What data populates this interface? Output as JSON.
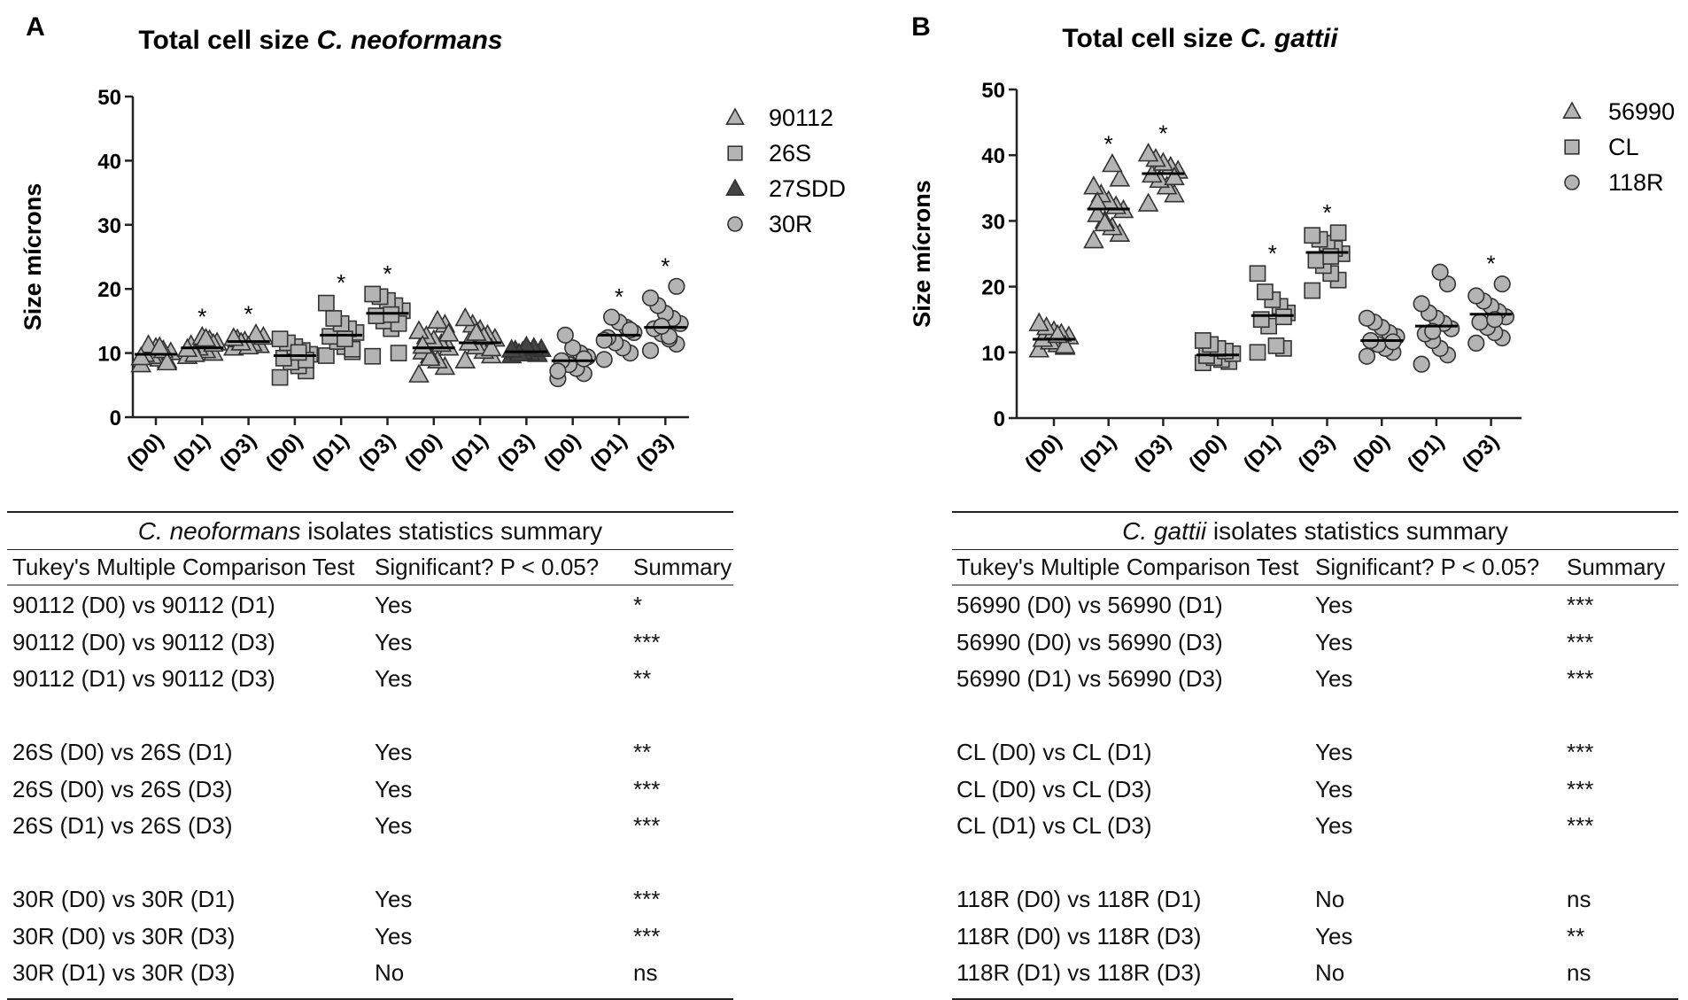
{
  "chart_data": [
    {
      "type": "scatter",
      "panel_label": "A",
      "title_prefix": "Total cell size",
      "title_species": "C. neoformans",
      "ylabel": "Size mícrons",
      "ylim": [
        0,
        50
      ],
      "yticks": [
        "0",
        "10",
        "20",
        "30",
        "40",
        "50"
      ],
      "categories": [
        "(D0)",
        "(D1)",
        "(D3)",
        "(D0)",
        "(D1)",
        "(D3)",
        "(D0)",
        "(D1)",
        "(D3)",
        "(D0)",
        "(D1)",
        "(D3)"
      ],
      "legend": [
        {
          "label": "90112",
          "marker": "triangle-open"
        },
        {
          "label": "26S",
          "marker": "square"
        },
        {
          "label": "27SDD",
          "marker": "triangle-dark"
        },
        {
          "label": "30R",
          "marker": "circle"
        }
      ],
      "series": [
        {
          "name": "90112",
          "marker": "triangle-open",
          "groups": [
            {
              "category_index": 0,
              "mean": 9.8,
              "significant": false,
              "points": [
                8.2,
                8.8,
                9.1,
                9.5,
                9.8,
                10.1,
                10.4,
                10.8,
                11.2,
                9.3,
                8.5,
                10.9
              ]
            },
            {
              "category_index": 1,
              "mean": 10.8,
              "significant": true,
              "points": [
                9.5,
                10.0,
                10.4,
                10.8,
                11.2,
                11.6,
                12.0,
                12.5,
                9.8,
                10.6,
                11.4,
                12.2
              ]
            },
            {
              "category_index": 2,
              "mean": 11.8,
              "significant": true,
              "points": [
                10.8,
                11.2,
                11.5,
                11.8,
                12.1,
                12.5,
                12.9,
                11.0,
                11.6,
                12.3
              ]
            }
          ]
        },
        {
          "name": "26S",
          "marker": "square",
          "groups": [
            {
              "category_index": 3,
              "mean": 9.6,
              "significant": false,
              "points": [
                6.2,
                7.2,
                8.0,
                8.6,
                9.2,
                9.8,
                10.4,
                11.0,
                11.6,
                12.2,
                8.9,
                10.1
              ]
            },
            {
              "category_index": 4,
              "mean": 12.8,
              "significant": true,
              "points": [
                9.6,
                10.2,
                11.0,
                11.8,
                12.6,
                13.2,
                13.8,
                14.6,
                15.4,
                17.8,
                10.6,
                12.2
              ]
            },
            {
              "category_index": 5,
              "mean": 16.2,
              "significant": true,
              "points": [
                9.5,
                10.0,
                13.8,
                15.0,
                15.8,
                16.6,
                17.4,
                18.2,
                18.8,
                19.2,
                14.6,
                16.0
              ]
            }
          ]
        },
        {
          "name": "27SDD",
          "marker": "triangle-light",
          "groups": [
            {
              "category_index": 6,
              "mean": 10.8,
              "significant": false,
              "points": [
                6.6,
                7.8,
                8.8,
                9.6,
                10.2,
                10.8,
                11.4,
                12.0,
                12.6,
                13.4,
                14.4,
                15.0,
                9.2,
                11.1,
                13.0
              ]
            },
            {
              "category_index": 7,
              "mean": 11.6,
              "significant": false,
              "points": [
                8.8,
                9.6,
                10.3,
                11.0,
                11.6,
                12.2,
                12.8,
                13.6,
                14.4,
                15.4,
                10.7,
                12.5,
                13.1
              ]
            }
          ]
        },
        {
          "name": "27SDD",
          "marker": "triangle-dark",
          "groups": [
            {
              "category_index": 8,
              "mean": 10.2,
              "significant": false,
              "points": [
                9.6,
                9.8,
                10.0,
                10.2,
                10.4,
                10.6,
                10.8,
                11.0,
                9.9,
                10.5
              ]
            }
          ]
        },
        {
          "name": "30R",
          "marker": "circle",
          "groups": [
            {
              "category_index": 9,
              "mean": 8.8,
              "significant": false,
              "points": [
                6.0,
                6.8,
                7.6,
                8.2,
                8.8,
                9.4,
                10.0,
                10.8,
                12.8,
                7.2,
                9.1
              ]
            },
            {
              "category_index": 10,
              "mean": 12.8,
              "significant": true,
              "points": [
                9.0,
                10.0,
                10.8,
                11.6,
                12.4,
                13.2,
                14.0,
                14.8,
                15.6,
                12.0,
                13.6
              ]
            },
            {
              "category_index": 11,
              "mean": 14.0,
              "significant": true,
              "points": [
                10.4,
                11.4,
                12.2,
                13.0,
                13.8,
                14.6,
                15.4,
                16.2,
                17.4,
                18.6,
                20.4,
                12.6,
                14.2
              ]
            }
          ]
        }
      ]
    },
    {
      "type": "scatter",
      "panel_label": "B",
      "title_prefix": "Total cell size",
      "title_species": "C. gattii",
      "ylabel": "Size mícrons",
      "ylim": [
        0,
        50
      ],
      "yticks": [
        "0",
        "10",
        "20",
        "30",
        "40",
        "50"
      ],
      "categories": [
        "(D0)",
        "(D1)",
        "(D3)",
        "(D0)",
        "(D1)",
        "(D3)",
        "(D0)",
        "(D1)",
        "(D3)"
      ],
      "legend": [
        {
          "label": "56990",
          "marker": "triangle-open"
        },
        {
          "label": "CL",
          "marker": "square"
        },
        {
          "label": "118R",
          "marker": "circle"
        }
      ],
      "series": [
        {
          "name": "56990",
          "marker": "triangle-open",
          "groups": [
            {
              "category_index": 0,
              "mean": 12.0,
              "significant": false,
              "points": [
                10.4,
                10.8,
                11.2,
                11.6,
                12.0,
                12.4,
                12.8,
                13.2,
                13.8,
                14.4,
                11.0,
                12.6
              ]
            },
            {
              "category_index": 1,
              "mean": 31.8,
              "significant": true,
              "points": [
                27.0,
                28.0,
                29.0,
                30.0,
                31.0,
                31.6,
                32.2,
                33.0,
                34.0,
                35.2,
                36.4,
                38.6,
                29.6,
                32.8
              ]
            },
            {
              "category_index": 2,
              "mean": 37.2,
              "significant": true,
              "points": [
                32.6,
                34.0,
                35.2,
                36.2,
                37.0,
                37.6,
                38.2,
                38.8,
                39.4,
                40.2,
                36.6
              ]
            }
          ]
        },
        {
          "name": "CL",
          "marker": "square",
          "groups": [
            {
              "category_index": 3,
              "mean": 9.6,
              "significant": false,
              "points": [
                8.4,
                8.6,
                8.9,
                9.2,
                9.5,
                9.8,
                10.2,
                10.6,
                11.2,
                11.8
              ]
            },
            {
              "category_index": 4,
              "mean": 15.6,
              "significant": true,
              "points": [
                10.0,
                10.6,
                11.0,
                14.0,
                15.0,
                16.0,
                17.0,
                18.0,
                19.2,
                22.0,
                15.4
              ]
            },
            {
              "category_index": 5,
              "mean": 25.2,
              "significant": true,
              "points": [
                19.4,
                21.0,
                22.0,
                23.2,
                24.0,
                25.0,
                25.8,
                26.6,
                27.2,
                27.8,
                28.2,
                24.6
              ]
            }
          ]
        },
        {
          "name": "118R",
          "marker": "circle",
          "groups": [
            {
              "category_index": 6,
              "mean": 11.8,
              "significant": false,
              "points": [
                9.4,
                10.0,
                10.6,
                11.2,
                11.8,
                12.4,
                13.0,
                13.8,
                14.6,
                15.2,
                11.6
              ]
            },
            {
              "category_index": 7,
              "mean": 14.0,
              "significant": false,
              "points": [
                8.2,
                9.6,
                10.6,
                11.8,
                12.8,
                13.6,
                14.4,
                15.2,
                16.0,
                17.4,
                20.4,
                22.2,
                13.2
              ]
            },
            {
              "category_index": 8,
              "mean": 15.8,
              "significant": true,
              "points": [
                11.4,
                12.2,
                13.0,
                13.8,
                14.6,
                15.4,
                16.2,
                17.0,
                17.8,
                18.6,
                20.4,
                15.0
              ]
            }
          ]
        }
      ]
    }
  ],
  "significance_symbol": "*",
  "tables": [
    {
      "caption_species": "C. neoformans",
      "caption_rest": "isolates statistics summary",
      "headers": [
        "Tukey's Multiple Comparison Test",
        "Significant? P < 0.05?",
        "Summary"
      ],
      "groups": [
        [
          {
            "test": "90112 (D0) vs 90112 (D1)",
            "significant": "Yes",
            "summary": "*"
          },
          {
            "test": "90112 (D0) vs 90112 (D3)",
            "significant": "Yes",
            "summary": "***"
          },
          {
            "test": "90112 (D1) vs 90112 (D3)",
            "significant": "Yes",
            "summary": "**"
          }
        ],
        [
          {
            "test": "26S (D0) vs 26S (D1)",
            "significant": "Yes",
            "summary": "**"
          },
          {
            "test": "26S (D0) vs 26S (D3)",
            "significant": "Yes",
            "summary": "***"
          },
          {
            "test": "26S (D1) vs 26S (D3)",
            "significant": "Yes",
            "summary": "***"
          }
        ],
        [
          {
            "test": "30R (D0) vs 30R (D1)",
            "significant": "Yes",
            "summary": "***"
          },
          {
            "test": "30R (D0) vs 30R (D3)",
            "significant": "Yes",
            "summary": "***"
          },
          {
            "test": "30R (D1) vs 30R (D3)",
            "significant": "No",
            "summary": "ns"
          }
        ]
      ]
    },
    {
      "caption_species": "C. gattii",
      "caption_rest": "isolates statistics summary",
      "headers": [
        "Tukey's Multiple Comparison Test",
        "Significant? P < 0.05?",
        "Summary"
      ],
      "groups": [
        [
          {
            "test": "56990 (D0) vs 56990 (D1)",
            "significant": "Yes",
            "summary": "***"
          },
          {
            "test": "56990 (D0) vs 56990 (D3)",
            "significant": "Yes",
            "summary": "***"
          },
          {
            "test": "56990 (D1) vs 56990 (D3)",
            "significant": "Yes",
            "summary": "***"
          }
        ],
        [
          {
            "test": "CL (D0) vs CL (D1)",
            "significant": "Yes",
            "summary": "***"
          },
          {
            "test": "CL (D0) vs CL (D3)",
            "significant": "Yes",
            "summary": "***"
          },
          {
            "test": "CL (D1) vs CL (D3)",
            "significant": "Yes",
            "summary": "***"
          }
        ],
        [
          {
            "test": "118R (D0) vs 118R (D1)",
            "significant": "No",
            "summary": "ns"
          },
          {
            "test": "118R (D0) vs 118R (D3)",
            "significant": "Yes",
            "summary": "**"
          },
          {
            "test": "118R (D1) vs 118R (D3)",
            "significant": "No",
            "summary": "ns"
          }
        ]
      ]
    }
  ],
  "colors": {
    "marker_fill": "#b4b4b4",
    "marker_fill_dark": "#444444",
    "marker_stroke": "#333333",
    "axis": "#222222",
    "text": "#111111"
  }
}
